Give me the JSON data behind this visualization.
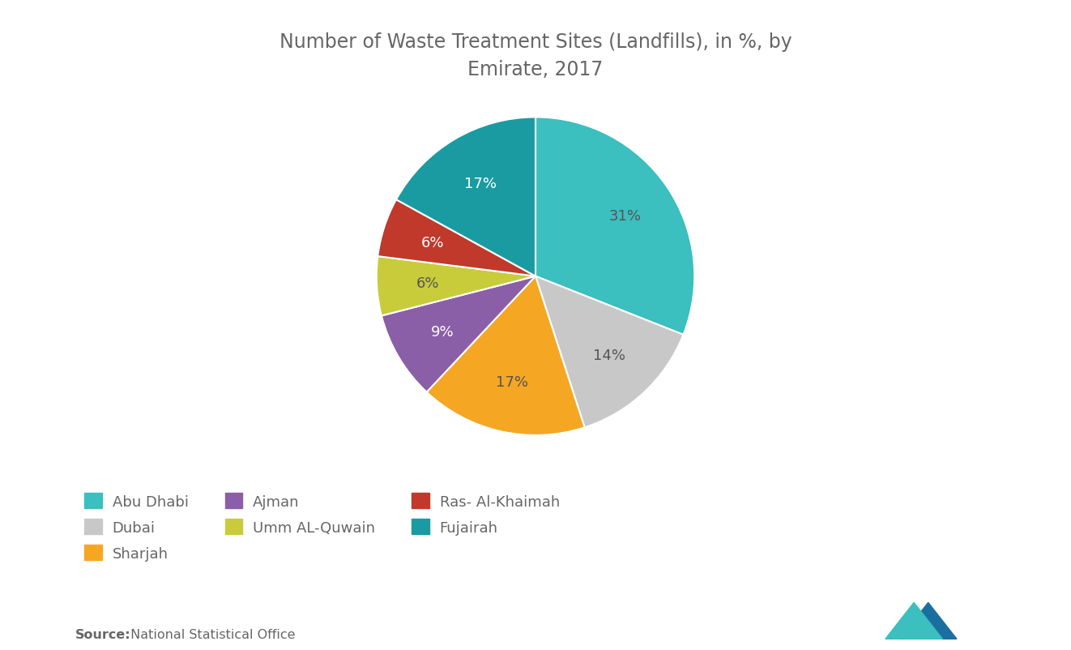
{
  "title": "Number of Waste Treatment Sites (Landfills), in %, by\nEmirate, 2017",
  "slices": [
    {
      "label": "Abu Dhabi",
      "value": 31,
      "color": "#3BBFBF"
    },
    {
      "label": "Dubai",
      "value": 14,
      "color": "#C8C8C8"
    },
    {
      "label": "Sharjah",
      "value": 17,
      "color": "#F5A623"
    },
    {
      "label": "Ajman",
      "value": 9,
      "color": "#8B5EA8"
    },
    {
      "label": "Umm AL-Quwain",
      "value": 6,
      "color": "#C8CC3A"
    },
    {
      "label": "Ras- Al-Khaimah",
      "value": 6,
      "color": "#C0392B"
    },
    {
      "label": "Fujairah",
      "value": 17,
      "color": "#1A9BA1"
    }
  ],
  "background_color": "#ffffff",
  "text_color": "#666666",
  "title_color": "#666666",
  "source_bold": "Source:",
  "source_detail": " National Statistical Office",
  "pct_label_colors": [
    "#555555",
    "#555555",
    "#555555",
    "#ffffff",
    "#555555",
    "#ffffff",
    "#ffffff"
  ],
  "legend_order": [
    0,
    1,
    2,
    3,
    4,
    5,
    6
  ],
  "startangle": 90
}
